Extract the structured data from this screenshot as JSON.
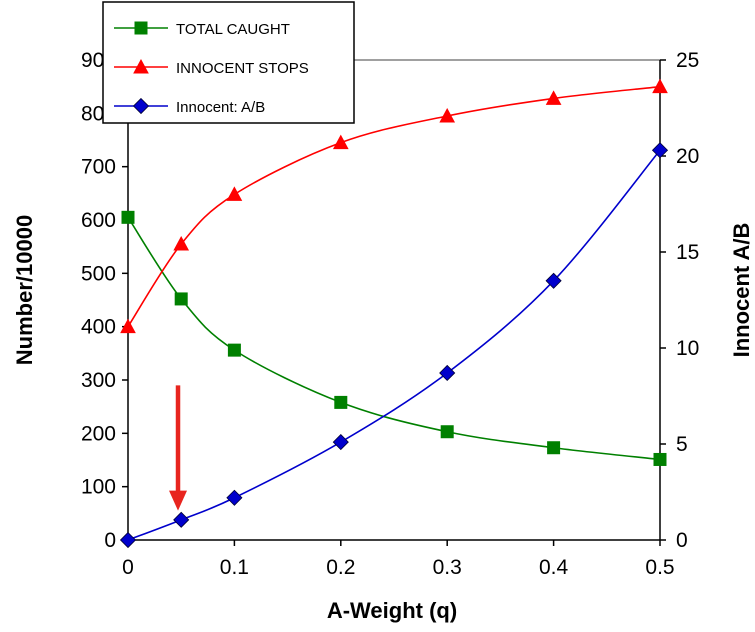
{
  "chart_data": {
    "type": "line",
    "xlabel": "A-Weight (q)",
    "ylabel": "Number/10000",
    "y2label": "Innocent A/B",
    "xlim": [
      0,
      0.5
    ],
    "ylim": [
      0,
      900
    ],
    "y2lim": [
      0,
      25
    ],
    "x_ticks": [
      "0",
      "0.1",
      "0.2",
      "0.3",
      "0.4",
      "0.5"
    ],
    "y_ticks": [
      "0",
      "100",
      "200",
      "300",
      "400",
      "500",
      "600",
      "700",
      "800",
      "900"
    ],
    "y2_ticks": [
      "0",
      "5",
      "10",
      "15",
      "20",
      "25"
    ],
    "grid": false,
    "legend_position": "top-left",
    "series": [
      {
        "name": "TOTAL CAUGHT",
        "axis": "left",
        "color": "#008000",
        "marker": "square",
        "x": [
          0,
          0.05,
          0.1,
          0.2,
          0.3,
          0.4,
          0.5
        ],
        "values": [
          605,
          452,
          356,
          258,
          203,
          173,
          151
        ]
      },
      {
        "name": "INNOCENT STOPS",
        "axis": "left",
        "color": "#ff0000",
        "marker": "triangle",
        "x": [
          0,
          0.05,
          0.1,
          0.2,
          0.3,
          0.4,
          0.5
        ],
        "values": [
          400,
          555,
          648,
          745,
          795,
          828,
          850
        ]
      },
      {
        "name": "Innocent: A/B",
        "axis": "right",
        "color": "#0000cc",
        "marker": "diamond",
        "x": [
          0,
          0.05,
          0.1,
          0.2,
          0.3,
          0.4,
          0.5
        ],
        "values": [
          0,
          1.05,
          2.2,
          5.1,
          8.7,
          13.5,
          20.3
        ]
      }
    ],
    "annotation": {
      "type": "arrow",
      "color": "#e8251f",
      "x": 0.047,
      "y_from": 290,
      "y_to": 55
    }
  }
}
